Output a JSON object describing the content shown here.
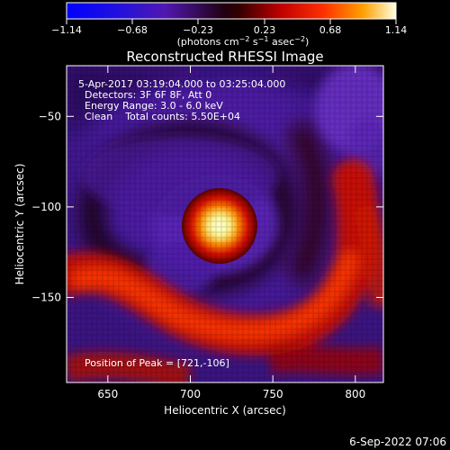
{
  "colorbar": {
    "ticks": [
      "−1.14",
      "−0.68",
      "−0.23",
      "0.23",
      "0.68",
      "1.14"
    ],
    "unit_label_parts": [
      "(photons cm",
      "−2",
      " s",
      "−1",
      " asec",
      "−2",
      ")"
    ],
    "range": [
      -1.14,
      1.14
    ]
  },
  "plot": {
    "title": "Reconstructed RHESSI Image",
    "xlabel": "Heliocentric X (arcsec)",
    "ylabel": "Heliocentric Y (arcsec)",
    "info_lines": [
      "5-Apr-2017 03:19:04.000 to 03:25:04.000",
      "Detectors: 3F 6F 8F, Att 0",
      "Energy Range: 3.0 - 6.0 keV",
      "Clean    Total counts: 5.50E+04"
    ],
    "peak_label": "Position of Peak = [721,-106]",
    "footer_timestamp": "6-Sep-2022 07:06"
  },
  "chart_data": {
    "type": "heatmap",
    "title": "Reconstructed RHESSI Image",
    "xlabel": "Heliocentric X (arcsec)",
    "ylabel": "Heliocentric Y (arcsec)",
    "xlim": [
      625,
      817
    ],
    "ylim": [
      -197,
      -22
    ],
    "x_ticks": [
      650,
      700,
      750,
      800
    ],
    "y_ticks": [
      -50,
      -100,
      -150
    ],
    "x_tick_labels": [
      "650",
      "700",
      "750",
      "800"
    ],
    "y_tick_labels": [
      "−50",
      "−100",
      "−150"
    ],
    "peak": [
      721,
      -106
    ],
    "colorbar_range": [
      -1.14,
      1.14
    ]
  }
}
